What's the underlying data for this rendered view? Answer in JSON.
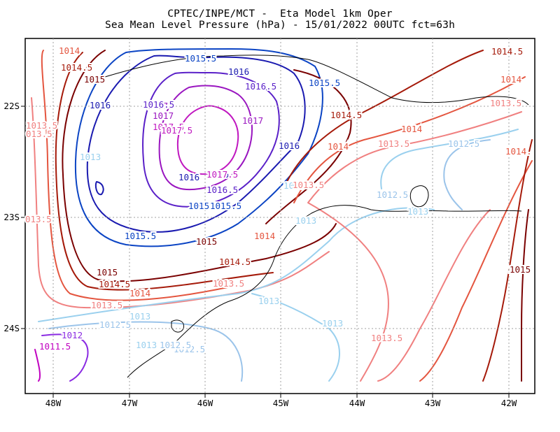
{
  "title": {
    "line1": "CPTEC/INPE/MCT -  Eta Model 1km Oper",
    "line2": "Sea Mean Level Pressure (hPa) - 15/01/2022 00UTC fct=63h"
  },
  "axes": {
    "lon_labels": [
      "48W",
      "47W",
      "46W",
      "45W",
      "44W",
      "43W",
      "42W"
    ],
    "lat_labels": [
      "22S",
      "23S",
      "24S"
    ],
    "grid": "dotted"
  },
  "colors": {
    "1011.5": "#c000c0",
    "1012": "#8a2be2",
    "1012.5": "#9bc4ea",
    "1013": "#9ad0ee",
    "1013.5": "#f08080",
    "1014": "#e4553f",
    "1014.5": "#a51a0a",
    "1015": "#7a0000",
    "1015.5": "#0b44c4",
    "1016": "#1a1ab0",
    "1016.5": "#5a20c8",
    "1017": "#9a16c0",
    "1017.5": "#c018c0",
    "coast": "#000000"
  },
  "contour_labels": [
    {
      "t": "1014",
      "k": "1014"
    },
    {
      "t": "1014.5",
      "k": "1014.5"
    },
    {
      "t": "1015",
      "k": "1015"
    },
    {
      "t": "1015.5",
      "k": "1015.5"
    },
    {
      "t": "1016",
      "k": "1016"
    },
    {
      "t": "1016.5",
      "k": "1016.5"
    },
    {
      "t": "1017",
      "k": "1017"
    },
    {
      "t": "1017.5",
      "k": "1017.5"
    },
    {
      "t": "1013.5",
      "k": "1013.5"
    },
    {
      "t": "013.5",
      "k": "1013.5"
    },
    {
      "t": "013.5",
      "k": "1013.5"
    },
    {
      "t": "1013",
      "k": "1013"
    },
    {
      "t": "1016",
      "k": "1016"
    },
    {
      "t": "1016.5",
      "k": "1016.5"
    },
    {
      "t": "1017",
      "k": "1017"
    },
    {
      "t": "1017.5",
      "k": "1017.5"
    },
    {
      "t": "1016",
      "k": "1016"
    },
    {
      "t": "1015.5",
      "k": "1015.5"
    },
    {
      "t": "1015.5",
      "k": "1015.5"
    },
    {
      "t": "1016",
      "k": "1016"
    },
    {
      "t": "1016",
      "k": "1016"
    },
    {
      "t": "1015.5",
      "k": "1015.5"
    },
    {
      "t": "1017",
      "k": "1017"
    },
    {
      "t": "1017.5",
      "k": "1017.5"
    },
    {
      "t": "1016.5",
      "k": "1016.5"
    },
    {
      "t": "1016",
      "k": "1016"
    },
    {
      "t": "1015",
      "k": "1015"
    },
    {
      "t": "1015",
      "k": "1015"
    },
    {
      "t": "1015.5",
      "k": "1015.5"
    },
    {
      "t": "1014.5",
      "k": "1014.5"
    },
    {
      "t": "1014.5",
      "k": "1014.5"
    },
    {
      "t": "1014",
      "k": "1014"
    },
    {
      "t": "1014",
      "k": "1014"
    },
    {
      "t": "1014.5",
      "k": "1014.5"
    },
    {
      "t": "1013.5",
      "k": "1013.5"
    },
    {
      "t": "1014",
      "k": "1014"
    },
    {
      "t": "1014",
      "k": "1014"
    },
    {
      "t": "1013.5",
      "k": "1013.5"
    },
    {
      "t": "1013",
      "k": "1013"
    },
    {
      "t": "1012.5",
      "k": "1012.5"
    },
    {
      "t": "1013",
      "k": "1013"
    },
    {
      "t": "1012.5",
      "k": "1012.5"
    },
    {
      "t": "1015",
      "k": "1015"
    },
    {
      "t": "1014.5",
      "k": "1014.5"
    },
    {
      "t": "1013.5",
      "k": "1013.5"
    },
    {
      "t": "1013",
      "k": "1013"
    },
    {
      "t": "1013",
      "k": "1013"
    },
    {
      "t": "1013.5",
      "k": "1013.5"
    },
    {
      "t": "1013",
      "k": "1013"
    },
    {
      "t": "1012.5",
      "k": "1012.5"
    },
    {
      "t": "1012.5",
      "k": "1012.5"
    },
    {
      "t": "1012.5",
      "k": "1012.5"
    },
    {
      "t": "1012",
      "k": "1012"
    },
    {
      "t": "1011.5",
      "k": "1011.5"
    },
    {
      "t": "1013",
      "k": "1013"
    },
    {
      "t": "1013",
      "k": "1013"
    },
    {
      "t": "1013.5",
      "k": "1013.5"
    },
    {
      "t": "1014.",
      "k": "1014"
    },
    {
      "t": "1015",
      "k": "1015"
    },
    {
      "t": "1014",
      "k": "1014"
    },
    {
      "t": "1013.5",
      "k": "1013.5"
    }
  ]
}
